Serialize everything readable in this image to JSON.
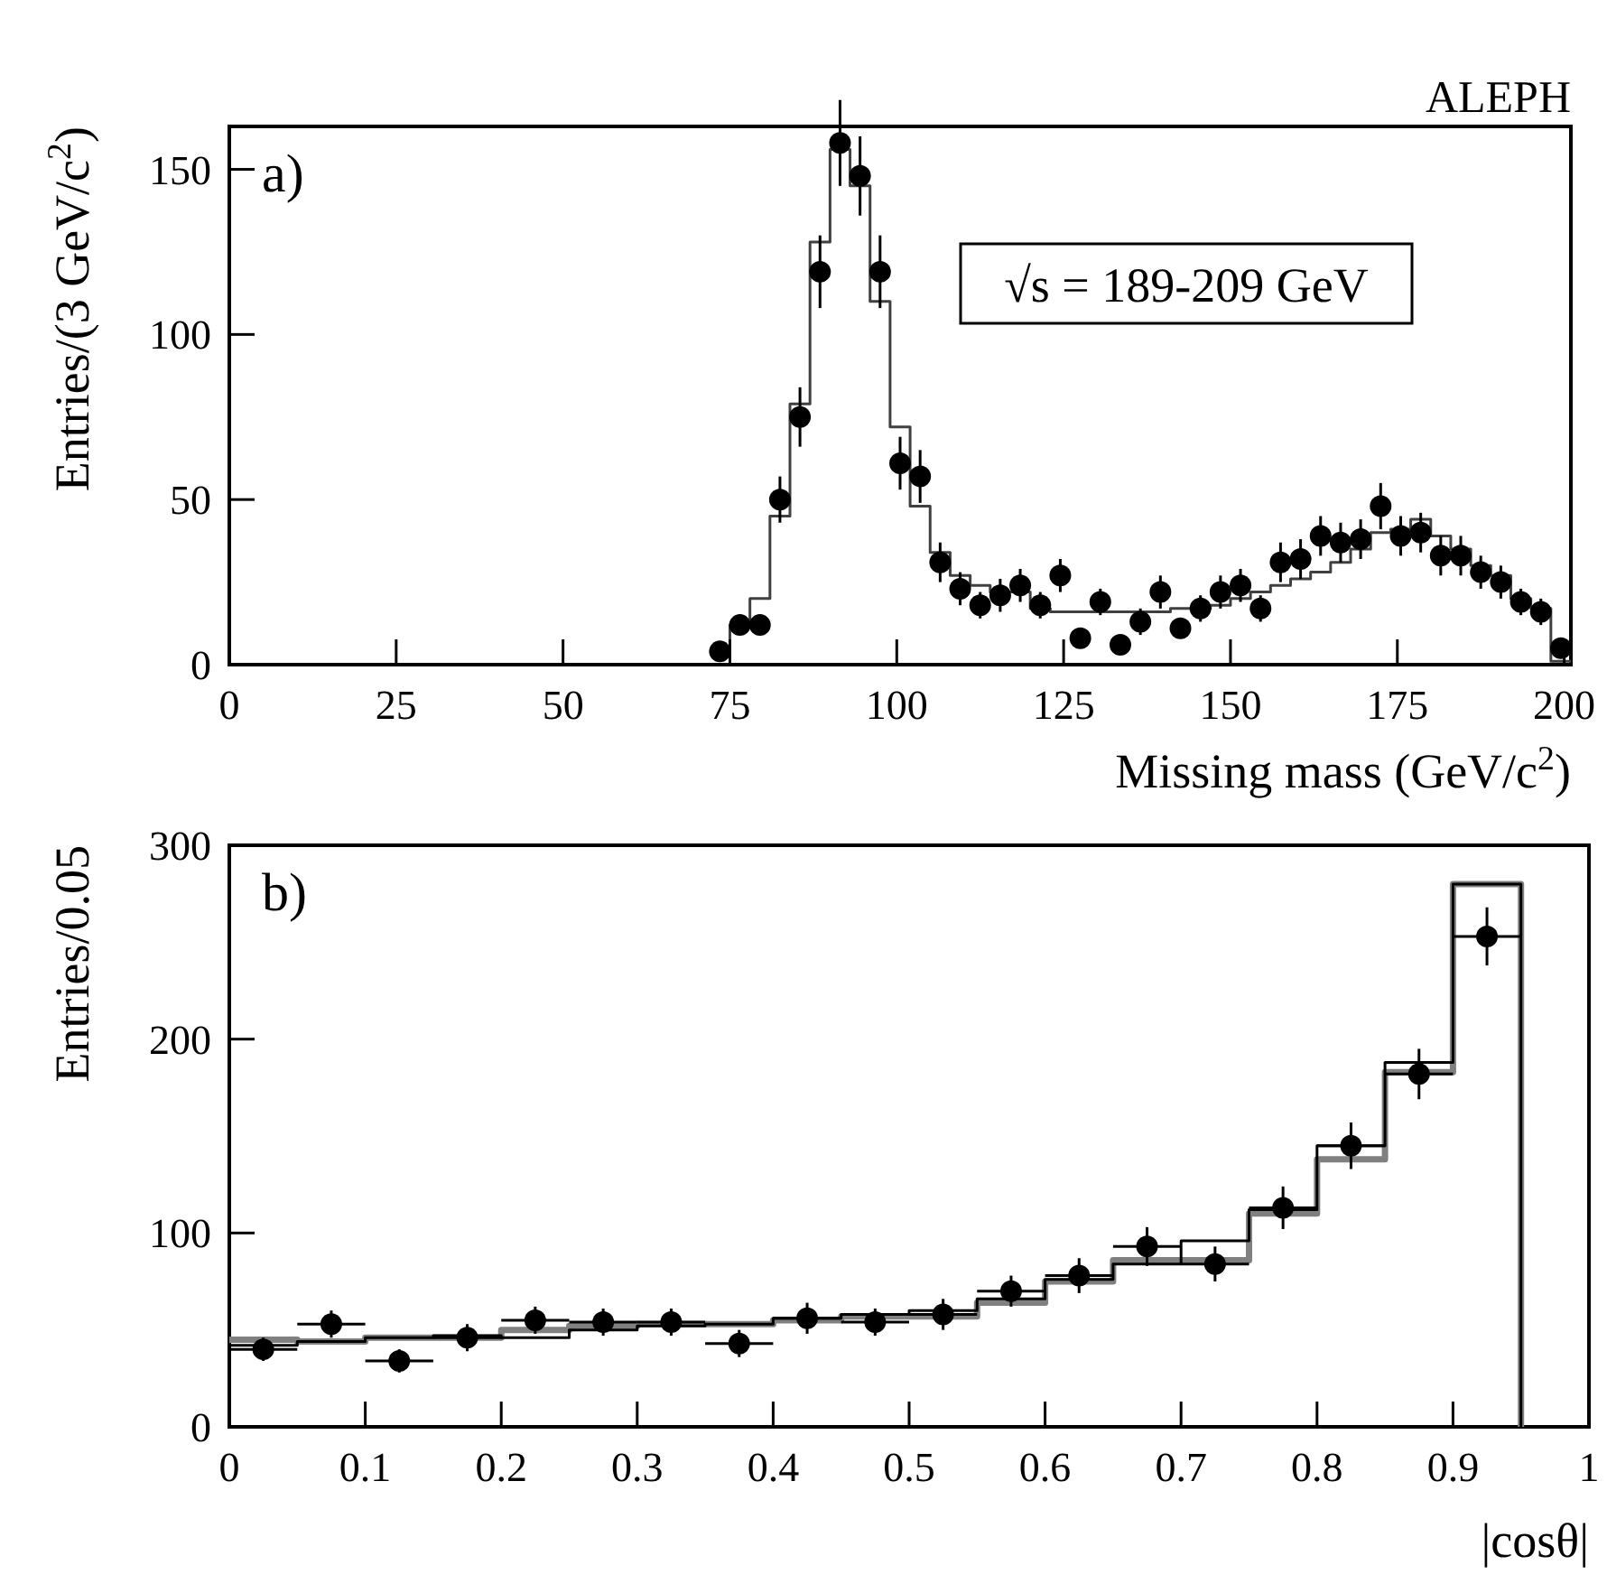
{
  "chart_data": [
    {
      "type": "step",
      "title": "ALEPH",
      "xlabel": "Missing mass (GeV/c$^{2}$)",
      "ylabel": "Entries/(3 GeV/c$^{2}$)",
      "annotations": [
        "a)",
        "√s = 189-209 GeV"
      ],
      "xlim": [
        0,
        201
      ],
      "xticks": [
        0,
        25,
        50,
        75,
        100,
        125,
        150,
        175,
        200
      ],
      "ylim": [
        0,
        163
      ],
      "yticks": [
        0,
        50,
        100,
        150
      ],
      "series": [
        {
          "color": "#404040",
          "x": [
            72,
            75,
            78,
            81,
            84,
            87,
            90,
            93,
            96,
            99,
            102,
            105,
            108,
            111,
            114,
            117,
            120,
            123,
            126,
            129,
            132,
            135,
            138,
            141,
            144,
            147,
            150,
            153,
            156,
            159,
            162,
            165,
            168,
            171,
            174,
            177,
            180,
            183,
            186,
            189,
            192,
            195,
            198,
            201
          ],
          "values": [
            4,
            12,
            20,
            45,
            79,
            128,
            156,
            145,
            110,
            72,
            48,
            34,
            27,
            24,
            22,
            22,
            17,
            16,
            16,
            16,
            16,
            16,
            16,
            17,
            17,
            18,
            20,
            22,
            24,
            26,
            28,
            31,
            35,
            40,
            41,
            44,
            39,
            35,
            30,
            27,
            20,
            17,
            1,
            1
          ]
        },
        {
          "type": "scatter",
          "marker": "circle",
          "color": "#000000",
          "x": [
            73.5,
            76.5,
            79.5,
            82.5,
            85.5,
            88.5,
            91.5,
            94.5,
            97.5,
            100.5,
            103.5,
            106.5,
            109.5,
            112.5,
            115.5,
            118.5,
            121.5,
            124.5,
            127.5,
            130.5,
            133.5,
            136.5,
            139.5,
            142.5,
            145.5,
            148.5,
            151.5,
            154.5,
            157.5,
            160.5,
            163.5,
            166.5,
            169.5,
            172.5,
            175.5,
            178.5,
            181.5,
            184.5,
            187.5,
            190.5,
            193.5,
            196.5,
            199.5
          ],
          "values": [
            4,
            12,
            12,
            50,
            75,
            119,
            158,
            148,
            119,
            61,
            57,
            31,
            23,
            18,
            21,
            24,
            18,
            27,
            8,
            19,
            6,
            13,
            22,
            11,
            17,
            22,
            24,
            17,
            31,
            32,
            39,
            37,
            38,
            48,
            39,
            40,
            33,
            33,
            28,
            25,
            19,
            16,
            5
          ],
          "errors": [
            2,
            3,
            3,
            7,
            9,
            11,
            13,
            12,
            11,
            8,
            8,
            6,
            5,
            4,
            5,
            5,
            4,
            5,
            3,
            4,
            2,
            4,
            5,
            3,
            4,
            5,
            5,
            4,
            6,
            6,
            6,
            6,
            6,
            7,
            6,
            6,
            6,
            6,
            5,
            5,
            4,
            4,
            2
          ]
        }
      ]
    },
    {
      "type": "step",
      "xlabel": "|cosθ|",
      "ylabel": "Entries/0.05",
      "annotations": [
        "b)"
      ],
      "xlim": [
        0,
        1
      ],
      "xticks": [
        0,
        0.1,
        0.2,
        0.3,
        0.4,
        0.5,
        0.6,
        0.7,
        0.8,
        0.9,
        1
      ],
      "ylim": [
        0,
        300
      ],
      "yticks": [
        0,
        100,
        200,
        300
      ],
      "series": [
        {
          "color": "#808080",
          "x": [
            0,
            0.05,
            0.1,
            0.15,
            0.2,
            0.25,
            0.3,
            0.35,
            0.4,
            0.45,
            0.5,
            0.55,
            0.6,
            0.65,
            0.7,
            0.75,
            0.8,
            0.85,
            0.9,
            0.95
          ],
          "values": [
            45,
            44,
            46,
            46,
            50,
            52,
            53,
            53,
            55,
            57,
            57,
            64,
            75,
            86,
            86,
            110,
            138,
            183,
            280,
            0
          ]
        },
        {
          "color": "#000000",
          "x": [
            0,
            0.05,
            0.1,
            0.15,
            0.2,
            0.25,
            0.3,
            0.35,
            0.4,
            0.45,
            0.5,
            0.55,
            0.6,
            0.65,
            0.7,
            0.75,
            0.8,
            0.85,
            0.9,
            0.95
          ],
          "values": [
            42,
            44,
            46,
            47,
            46,
            50,
            52,
            53,
            56,
            58,
            60,
            66,
            76,
            84,
            96,
            112,
            145,
            188,
            280,
            0
          ]
        },
        {
          "type": "scatter",
          "marker": "circle",
          "color": "#000000",
          "x": [
            0.025,
            0.075,
            0.125,
            0.175,
            0.225,
            0.275,
            0.325,
            0.375,
            0.425,
            0.475,
            0.525,
            0.575,
            0.625,
            0.675,
            0.725,
            0.775,
            0.825,
            0.875,
            0.925
          ],
          "values": [
            40,
            53,
            34,
            46,
            55,
            54,
            54,
            43,
            56,
            54,
            58,
            70,
            78,
            93,
            84,
            113,
            145,
            182,
            253
          ],
          "errors": [
            6,
            7,
            6,
            7,
            7,
            7,
            7,
            7,
            8,
            7,
            8,
            8,
            9,
            10,
            9,
            11,
            12,
            13,
            15
          ],
          "xerrors": [
            0.025,
            0.025,
            0.025,
            0.025,
            0.025,
            0.025,
            0.025,
            0.025,
            0.025,
            0.025,
            0.025,
            0.025,
            0.025,
            0.025,
            0.025,
            0.025,
            0.025,
            0.025,
            0.025
          ]
        }
      ]
    }
  ]
}
